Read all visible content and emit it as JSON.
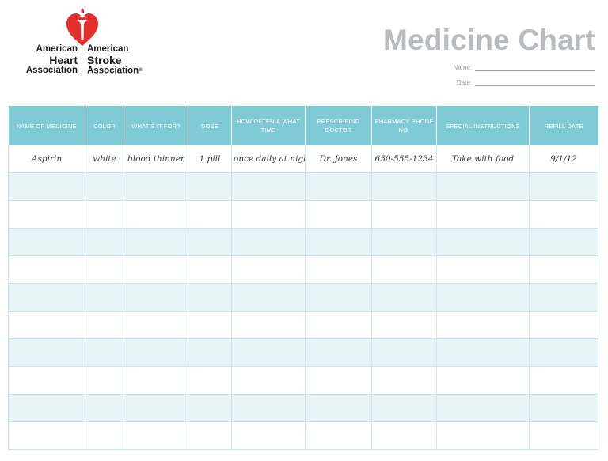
{
  "logo": {
    "left_line1": "American",
    "left_line2": "Heart",
    "left_line3": "Association",
    "right_line1": "American",
    "right_line2": "Stroke",
    "right_line3": "Association",
    "registered": "®",
    "heart_color": "#e4302c"
  },
  "header": {
    "title": "Medicine Chart",
    "name_label": "Name:",
    "date_label": "Date:"
  },
  "table": {
    "columns": [
      "NAME OF MEDICINE",
      "COLOR",
      "WHAT'S IT FOR?",
      "DOSE",
      "HOW OFTEN & WHAT TIME",
      "PRESCRIBING DOCTOR",
      "PHARMACY PHONE NO.",
      "SPECIAL INSTRUCTIONS",
      "REFILL DATE"
    ],
    "rows": [
      [
        "Aspirin",
        "white",
        "blood thinner",
        "1 pill",
        "once daily at night",
        "Dr. Jones",
        "650-555-1234",
        "Take with food",
        "9/1/12"
      ],
      [
        "",
        "",
        "",
        "",
        "",
        "",
        "",
        "",
        ""
      ],
      [
        "",
        "",
        "",
        "",
        "",
        "",
        "",
        "",
        ""
      ],
      [
        "",
        "",
        "",
        "",
        "",
        "",
        "",
        "",
        ""
      ],
      [
        "",
        "",
        "",
        "",
        "",
        "",
        "",
        "",
        ""
      ],
      [
        "",
        "",
        "",
        "",
        "",
        "",
        "",
        "",
        ""
      ],
      [
        "",
        "",
        "",
        "",
        "",
        "",
        "",
        "",
        ""
      ],
      [
        "",
        "",
        "",
        "",
        "",
        "",
        "",
        "",
        ""
      ],
      [
        "",
        "",
        "",
        "",
        "",
        "",
        "",
        "",
        ""
      ],
      [
        "",
        "",
        "",
        "",
        "",
        "",
        "",
        "",
        ""
      ],
      [
        "",
        "",
        "",
        "",
        "",
        "",
        "",
        "",
        ""
      ]
    ],
    "header_color": "#7fcad4",
    "alt_row_color": "#e8f5f8"
  }
}
